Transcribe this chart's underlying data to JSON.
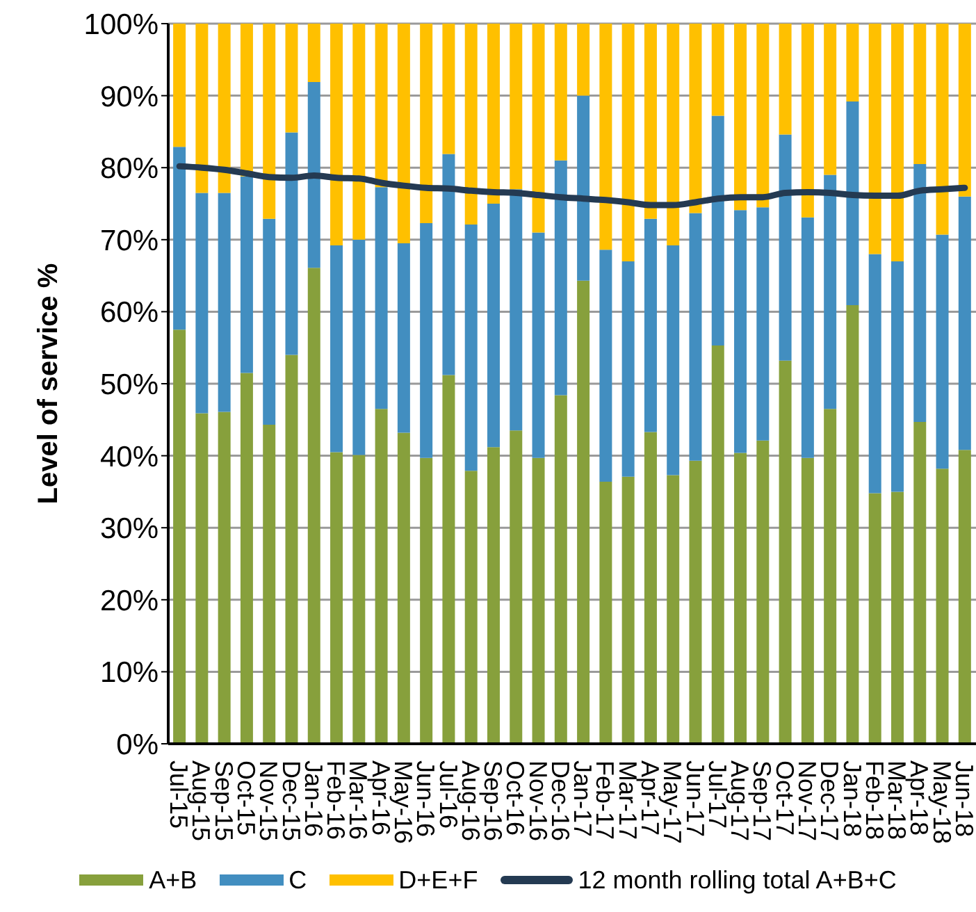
{
  "chart_data": {
    "type": "bar",
    "stacked": true,
    "ylabel": "Level of service %",
    "categories": [
      "Jul-15",
      "Aug-15",
      "Sep-15",
      "Oct-15",
      "Nov-15",
      "Dec-15",
      "Jan-16",
      "Feb-16",
      "Mar-16",
      "Apr-16",
      "May-16",
      "Jun-16",
      "Jul-16",
      "Aug-16",
      "Sep-16",
      "Oct-16",
      "Nov-16",
      "Dec-16",
      "Jan-17",
      "Feb-17",
      "Mar-17",
      "Apr-17",
      "May-17",
      "Jun-17",
      "Jul-17",
      "Aug-17",
      "Sep-17",
      "Oct-17",
      "Nov-17",
      "Dec-17",
      "Jan-18",
      "Feb-18",
      "Mar-18",
      "Apr-18",
      "May-18",
      "Jun-18"
    ],
    "series": [
      {
        "name": "A+B",
        "color": "#87a03c",
        "values": [
          57.5,
          45.9,
          46.1,
          51.5,
          44.3,
          54.0,
          66.1,
          40.5,
          40.1,
          46.5,
          43.2,
          39.7,
          51.2,
          37.9,
          41.2,
          43.5,
          39.7,
          48.4,
          64.3,
          36.4,
          37.1,
          43.3,
          37.3,
          39.3,
          55.3,
          40.4,
          42.1,
          53.2,
          39.7,
          46.5,
          60.9,
          34.8,
          35.0,
          44.7,
          38.2,
          40.8
        ]
      },
      {
        "name": "C",
        "color": "#428ec0",
        "values": [
          25.4,
          30.6,
          30.4,
          27.3,
          28.6,
          30.9,
          25.8,
          28.7,
          29.9,
          30.8,
          26.3,
          32.6,
          30.7,
          34.2,
          33.8,
          33.5,
          31.3,
          32.6,
          25.7,
          32.2,
          29.9,
          29.6,
          31.9,
          34.4,
          31.9,
          33.7,
          32.4,
          31.4,
          33.4,
          32.5,
          28.3,
          33.2,
          32.0,
          35.8,
          32.5,
          35.2
        ]
      },
      {
        "name": "D+E+F",
        "color": "#ffc000",
        "values": [
          17.1,
          23.5,
          23.5,
          21.2,
          27.1,
          15.1,
          8.1,
          30.8,
          30.0,
          22.7,
          30.5,
          27.7,
          18.1,
          27.9,
          25.0,
          23.0,
          29.0,
          19.0,
          10.0,
          31.4,
          33.0,
          27.1,
          30.8,
          26.3,
          12.8,
          25.9,
          25.5,
          15.4,
          26.9,
          21.0,
          10.8,
          32.0,
          33.0,
          19.5,
          29.3,
          24.0
        ]
      },
      {
        "name": "12 month rolling total A+B+C",
        "type": "line",
        "color": "#243a52",
        "values": [
          80.2,
          80.0,
          79.7,
          79.2,
          78.7,
          78.6,
          78.9,
          78.6,
          78.5,
          77.9,
          77.5,
          77.2,
          77.1,
          76.8,
          76.6,
          76.5,
          76.2,
          75.9,
          75.7,
          75.5,
          75.2,
          74.8,
          74.8,
          75.2,
          75.7,
          75.9,
          75.9,
          76.5,
          76.6,
          76.5,
          76.2,
          76.1,
          76.1,
          76.8,
          77.0,
          77.2
        ]
      }
    ],
    "ylim": [
      0,
      100
    ],
    "yticks": [
      {
        "value": 0,
        "label": "0%"
      },
      {
        "value": 10,
        "label": "10%"
      },
      {
        "value": 20,
        "label": "20%"
      },
      {
        "value": 30,
        "label": "30%"
      },
      {
        "value": 40,
        "label": "40%"
      },
      {
        "value": 50,
        "label": "50%"
      },
      {
        "value": 60,
        "label": "60%"
      },
      {
        "value": 70,
        "label": "70%"
      },
      {
        "value": 80,
        "label": "80%"
      },
      {
        "value": 90,
        "label": "90%"
      },
      {
        "value": 100,
        "label": "100%"
      }
    ],
    "grid": "y",
    "legend": "bottom"
  }
}
